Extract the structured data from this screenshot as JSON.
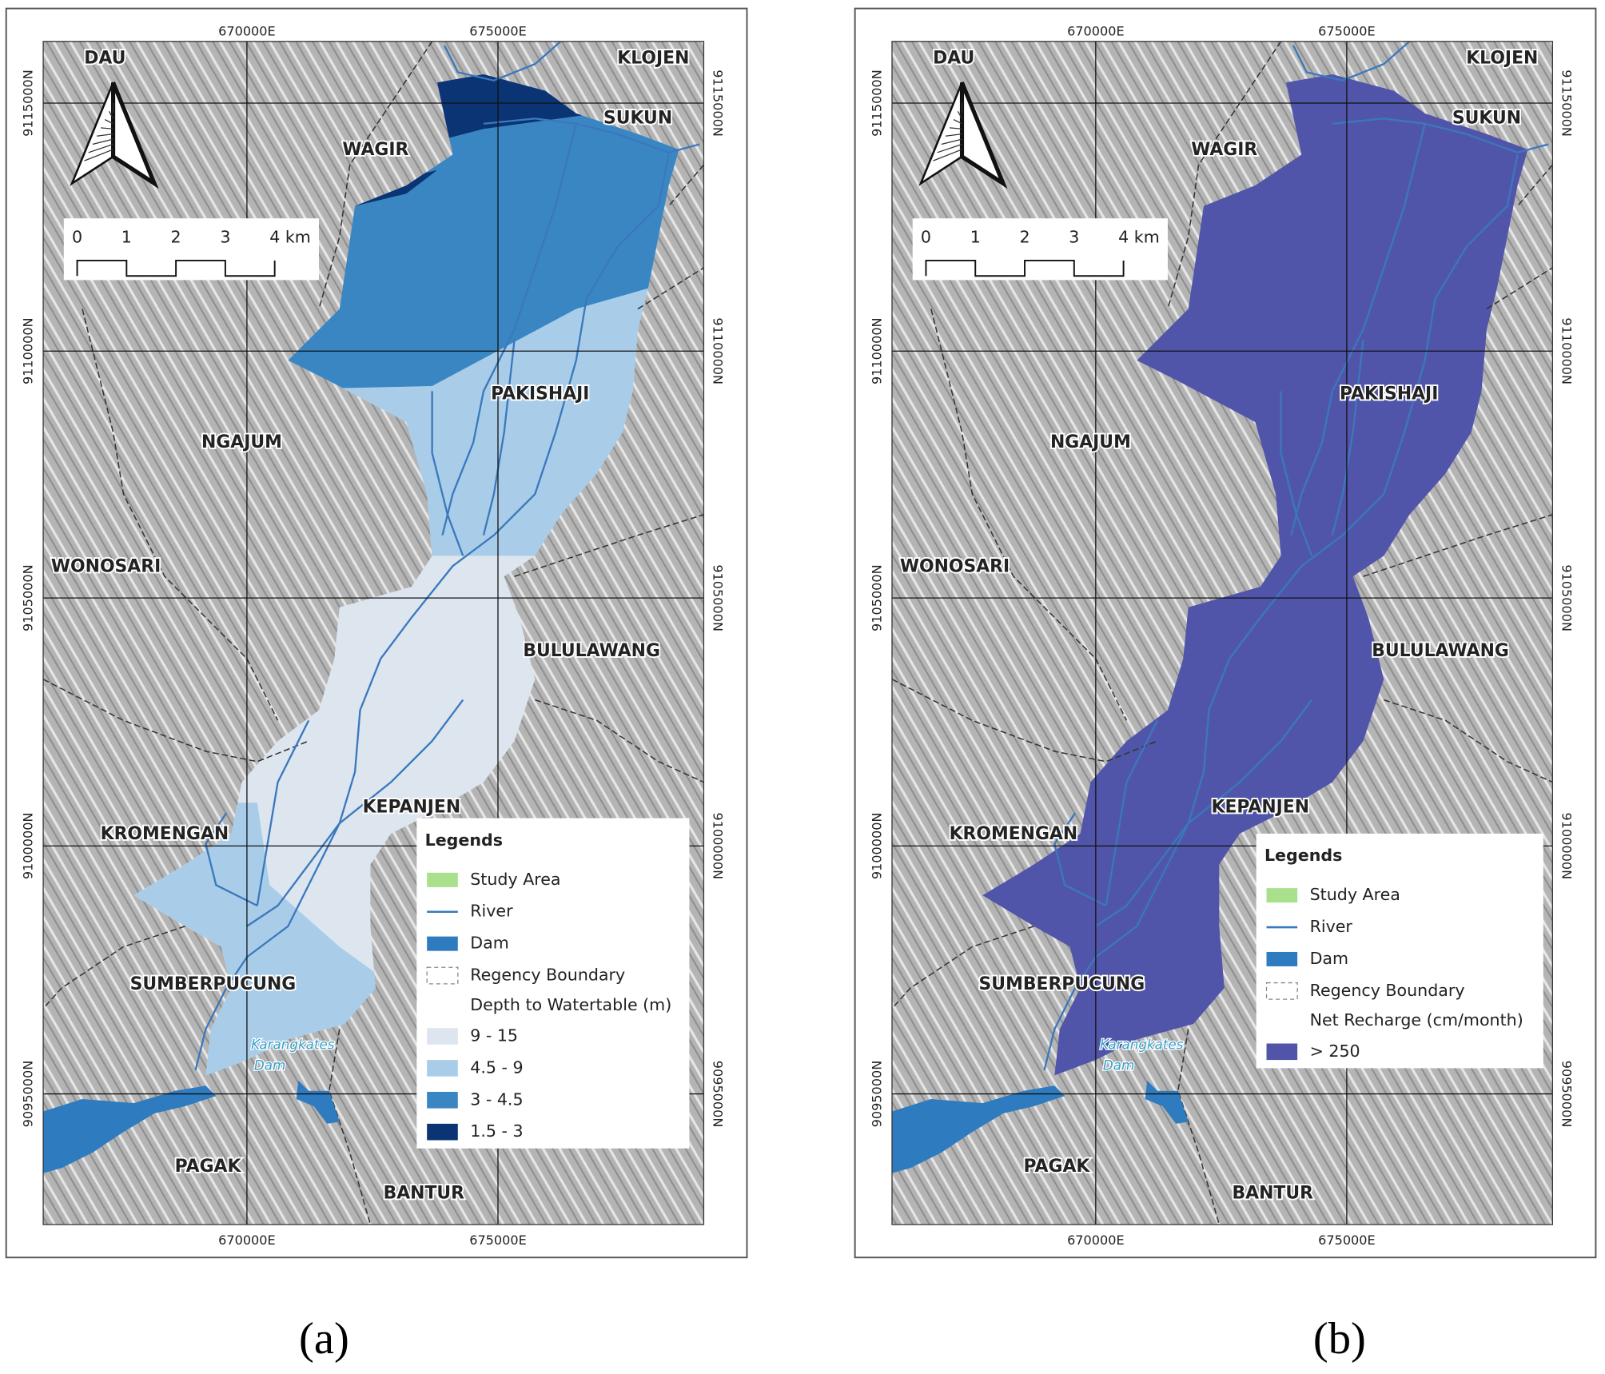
{
  "panels": [
    {
      "caption": "(a)",
      "x_labels": [
        "670000E",
        "675000E"
      ],
      "y_labels": [
        "9115000N",
        "9110000N",
        "9105000N",
        "9100000N",
        "9095000N"
      ],
      "places": [
        "DAU",
        "KLOJEN",
        "SUKUN",
        "WAGIR",
        "PAKISHAJI",
        "NGAJUM",
        "WONOSARI",
        "BULULAWANG",
        "KEPANJEN",
        "KROMENGAN",
        "SUMBERPUCUNG",
        "PAGAK",
        "BANTUR"
      ],
      "dam_label": [
        "Karangkates",
        "Dam"
      ],
      "scale": [
        "0",
        "1",
        "2",
        "3",
        "4 km"
      ],
      "legend": {
        "title": "Legends",
        "items": [
          "Study Area",
          "River",
          "Dam",
          "Regency Boundary"
        ],
        "class_title": "Depth to Watertable (m)",
        "classes": [
          {
            "label": "9 - 15",
            "color": "#dde5ef"
          },
          {
            "label": "4.5 - 9",
            "color": "#a9cde8"
          },
          {
            "label": "3 - 4.5",
            "color": "#3a86c3"
          },
          {
            "label": "1.5 - 3",
            "color": "#0a3473"
          }
        ]
      }
    },
    {
      "caption": "(b)",
      "x_labels": [
        "670000E",
        "675000E"
      ],
      "y_labels": [
        "9115000N",
        "9110000N",
        "9105000N",
        "9100000N",
        "9095000N"
      ],
      "places": [
        "DAU",
        "KLOJEN",
        "SUKUN",
        "WAGIR",
        "PAKISHAJI",
        "NGAJUM",
        "WONOSARI",
        "BULULAWANG",
        "KEPANJEN",
        "KROMENGAN",
        "SUMBERPUCUNG",
        "PAGAK",
        "BANTUR"
      ],
      "dam_label": [
        "Karangkates",
        "Dam"
      ],
      "scale": [
        "0",
        "1",
        "2",
        "3",
        "4 km"
      ],
      "legend": {
        "title": "Legends",
        "items": [
          "Study Area",
          "River",
          "Dam",
          "Regency Boundary"
        ],
        "class_title": "Net Recharge (cm/month)",
        "classes": [
          {
            "label": "> 250",
            "color": "#5155a9"
          }
        ]
      }
    }
  ]
}
